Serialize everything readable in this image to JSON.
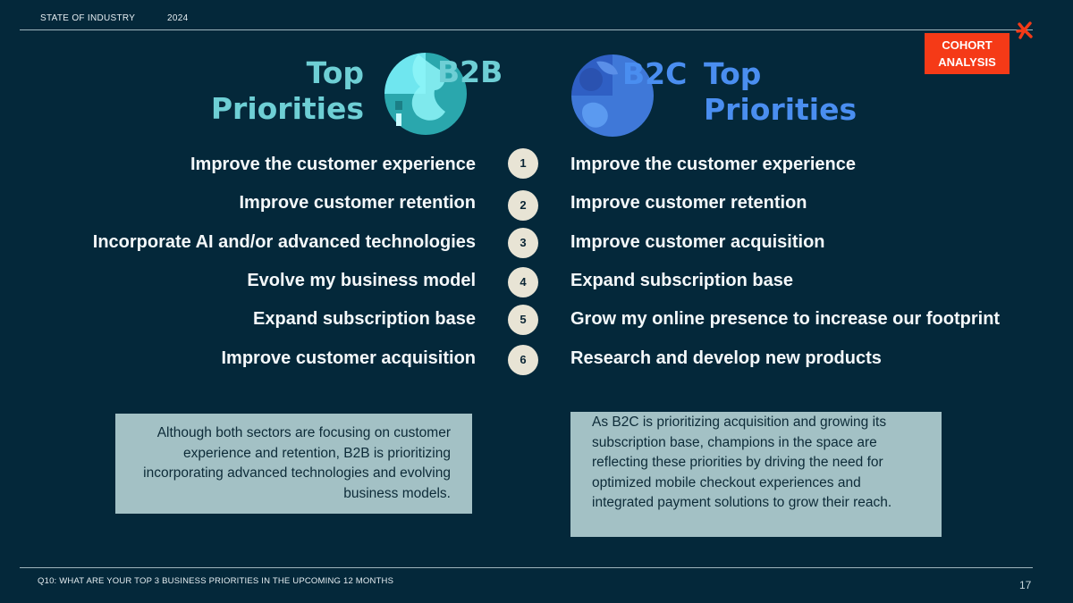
{
  "header": {
    "left_label": "STATE OF INDUSTRY",
    "year": "2024",
    "badge_line1": "COHORT",
    "badge_line2": "ANALYSIS",
    "logo_icon": "asterisk-logo-icon",
    "accent_color": "#f53a17"
  },
  "b2b": {
    "title_line1": "Top",
    "title_line2": "Priorities",
    "tag": "B2B",
    "color": "#6ecfd5",
    "items": [
      "Improve the customer experience",
      "Improve customer retention",
      "Incorporate AI and/or advanced technologies",
      "Evolve my business model",
      "Expand subscription base",
      "Improve customer acquisition"
    ],
    "note": "Although both sectors are focusing on customer experience and retention, B2B is prioritizing incorporating advanced technologies and evolving business models."
  },
  "b2c": {
    "title_line1": "Top",
    "title_line2": "Priorities",
    "tag": "B2C",
    "color": "#4a8ef0",
    "items": [
      "Improve the customer experience",
      "Improve customer retention",
      "Improve customer acquisition",
      "Expand subscription base",
      "Grow my online presence to increase our footprint",
      "Research and develop new products"
    ],
    "note": "As B2C is prioritizing acquisition and growing its subscription base, champions in the space are reflecting these priorities by driving the need for optimized mobile checkout experiences and integrated payment solutions to grow their reach."
  },
  "ranks": [
    "1",
    "2",
    "3",
    "4",
    "5",
    "6"
  ],
  "footer": {
    "question": "Q10:  WHAT ARE YOUR TOP 3 BUSINESS PRIORITIES IN THE UPCOMING 12 MONTHS",
    "page_number": "17"
  }
}
